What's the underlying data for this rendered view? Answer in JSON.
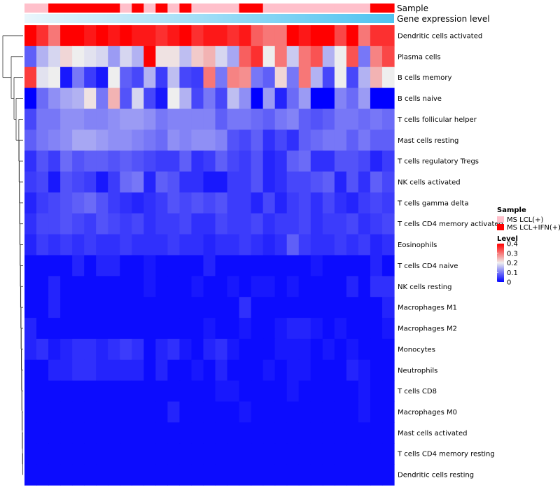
{
  "chart_data": {
    "type": "heatmap",
    "annotation_labels": [
      "Sample",
      "Gene expression level"
    ],
    "rows": [
      "Dendritic cells activated",
      "Plasma cells",
      "B cells memory",
      "B cells naive",
      "T cells follicular helper",
      "Mast cells resting",
      "T cells regulatory  Tregs",
      "NK cells activated",
      "T cells gamma delta",
      "T cells CD4 memory activated",
      "Eosinophils",
      "T cells CD4 naive",
      "NK cells resting",
      "Macrophages M1",
      "Macrophages M2",
      "Monocytes",
      "Neutrophils",
      "T cells CD8",
      "Macrophages M0",
      "Mast cells activated",
      "T cells CD4 memory resting",
      "Dendritic cells resting"
    ],
    "n_columns": 31,
    "sample_groups": [
      "MS LCL(+)",
      "MS LCL+IFN(+)"
    ],
    "sample_annotation": [
      0,
      0,
      1,
      1,
      1,
      1,
      1,
      1,
      0,
      1,
      0,
      1,
      0,
      1,
      0,
      0,
      0,
      0,
      1,
      1,
      0,
      0,
      0,
      0,
      0,
      0,
      0,
      0,
      0,
      1,
      1
    ],
    "values": [
      [
        0.4,
        0.36,
        0.3,
        0.42,
        0.42,
        0.38,
        0.4,
        0.38,
        0.4,
        0.38,
        0.38,
        0.36,
        0.38,
        0.42,
        0.36,
        0.38,
        0.38,
        0.36,
        0.38,
        0.32,
        0.3,
        0.3,
        0.4,
        0.38,
        0.4,
        0.4,
        0.34,
        0.4,
        0.3,
        0.36,
        0.36
      ],
      [
        0.08,
        0.15,
        0.18,
        0.22,
        0.2,
        0.19,
        0.18,
        0.13,
        0.18,
        0.15,
        0.42,
        0.21,
        0.21,
        0.16,
        0.23,
        0.25,
        0.18,
        0.14,
        0.32,
        0.36,
        0.2,
        0.3,
        0.17,
        0.3,
        0.33,
        0.15,
        0.2,
        0.33,
        0.1,
        0.29,
        0.34
      ],
      [
        0.35,
        0.19,
        0.2,
        0.02,
        0.1,
        0.05,
        0.02,
        0.2,
        0.08,
        0.06,
        0.15,
        0.05,
        0.16,
        0.06,
        0.05,
        0.3,
        0.1,
        0.29,
        0.28,
        0.1,
        0.08,
        0.22,
        0.1,
        0.3,
        0.15,
        0.06,
        0.2,
        0.06,
        0.15,
        0.25,
        0.2
      ],
      [
        0.0,
        0.09,
        0.12,
        0.14,
        0.15,
        0.21,
        0.1,
        0.25,
        0.07,
        0.18,
        0.06,
        0.02,
        0.2,
        0.15,
        0.06,
        0.1,
        0.06,
        0.16,
        0.12,
        0.0,
        0.13,
        0.03,
        0.09,
        0.13,
        0.0,
        0.0,
        0.11,
        0.09,
        0.13,
        0.0,
        0.0
      ],
      [
        0.06,
        0.1,
        0.1,
        0.12,
        0.12,
        0.11,
        0.11,
        0.12,
        0.13,
        0.13,
        0.12,
        0.1,
        0.11,
        0.11,
        0.11,
        0.11,
        0.08,
        0.1,
        0.1,
        0.09,
        0.08,
        0.1,
        0.11,
        0.08,
        0.07,
        0.08,
        0.1,
        0.1,
        0.09,
        0.1,
        0.09
      ],
      [
        0.08,
        0.1,
        0.11,
        0.12,
        0.14,
        0.14,
        0.13,
        0.12,
        0.12,
        0.11,
        0.1,
        0.09,
        0.12,
        0.11,
        0.12,
        0.12,
        0.11,
        0.07,
        0.06,
        0.08,
        0.04,
        0.06,
        0.04,
        0.08,
        0.09,
        0.1,
        0.1,
        0.08,
        0.1,
        0.08,
        0.08
      ],
      [
        0.04,
        0.07,
        0.05,
        0.09,
        0.07,
        0.08,
        0.08,
        0.07,
        0.08,
        0.07,
        0.06,
        0.05,
        0.05,
        0.08,
        0.04,
        0.05,
        0.08,
        0.06,
        0.05,
        0.07,
        0.03,
        0.04,
        0.08,
        0.09,
        0.04,
        0.04,
        0.07,
        0.07,
        0.06,
        0.03,
        0.05
      ],
      [
        0.05,
        0.06,
        0.02,
        0.07,
        0.06,
        0.05,
        0.02,
        0.05,
        0.09,
        0.1,
        0.03,
        0.08,
        0.07,
        0.04,
        0.04,
        0.02,
        0.02,
        0.05,
        0.05,
        0.07,
        0.03,
        0.04,
        0.06,
        0.06,
        0.07,
        0.08,
        0.03,
        0.07,
        0.04,
        0.08,
        0.06
      ],
      [
        0.03,
        0.05,
        0.06,
        0.07,
        0.08,
        0.09,
        0.07,
        0.05,
        0.04,
        0.03,
        0.04,
        0.05,
        0.07,
        0.06,
        0.07,
        0.06,
        0.07,
        0.05,
        0.05,
        0.03,
        0.06,
        0.03,
        0.05,
        0.06,
        0.04,
        0.06,
        0.04,
        0.03,
        0.05,
        0.06,
        0.05
      ],
      [
        0.04,
        0.06,
        0.06,
        0.07,
        0.06,
        0.05,
        0.07,
        0.06,
        0.05,
        0.06,
        0.04,
        0.05,
        0.05,
        0.06,
        0.04,
        0.04,
        0.06,
        0.05,
        0.05,
        0.06,
        0.04,
        0.05,
        0.05,
        0.06,
        0.04,
        0.05,
        0.05,
        0.06,
        0.04,
        0.05,
        0.06
      ],
      [
        0.03,
        0.05,
        0.04,
        0.05,
        0.04,
        0.05,
        0.04,
        0.04,
        0.05,
        0.04,
        0.04,
        0.04,
        0.05,
        0.04,
        0.04,
        0.03,
        0.04,
        0.04,
        0.05,
        0.04,
        0.03,
        0.04,
        0.08,
        0.05,
        0.04,
        0.04,
        0.05,
        0.04,
        0.05,
        0.03,
        0.04
      ],
      [
        0.01,
        0.01,
        0.01,
        0.01,
        0.03,
        0.01,
        0.03,
        0.03,
        0.01,
        0.01,
        0.02,
        0.01,
        0.01,
        0.01,
        0.01,
        0.03,
        0.01,
        0.01,
        0.01,
        0.01,
        0.01,
        0.01,
        0.01,
        0.01,
        0.02,
        0.01,
        0.01,
        0.01,
        0.01,
        0.03,
        0.01
      ],
      [
        0.01,
        0.01,
        0.03,
        0.01,
        0.01,
        0.01,
        0.01,
        0.01,
        0.01,
        0.01,
        0.02,
        0.01,
        0.01,
        0.01,
        0.02,
        0.01,
        0.01,
        0.02,
        0.01,
        0.02,
        0.02,
        0.01,
        0.02,
        0.01,
        0.01,
        0.01,
        0.01,
        0.03,
        0.01,
        0.04,
        0.04
      ],
      [
        0.01,
        0.01,
        0.03,
        0.01,
        0.01,
        0.01,
        0.01,
        0.01,
        0.01,
        0.01,
        0.01,
        0.01,
        0.01,
        0.01,
        0.01,
        0.01,
        0.01,
        0.01,
        0.04,
        0.01,
        0.01,
        0.01,
        0.01,
        0.01,
        0.01,
        0.01,
        0.01,
        0.01,
        0.01,
        0.01,
        0.03
      ],
      [
        0.03,
        0.01,
        0.01,
        0.01,
        0.01,
        0.01,
        0.01,
        0.01,
        0.01,
        0.01,
        0.01,
        0.01,
        0.01,
        0.01,
        0.01,
        0.02,
        0.01,
        0.01,
        0.02,
        0.01,
        0.01,
        0.02,
        0.03,
        0.03,
        0.02,
        0.01,
        0.02,
        0.01,
        0.01,
        0.01,
        0.02
      ],
      [
        0.03,
        0.04,
        0.02,
        0.03,
        0.04,
        0.04,
        0.03,
        0.04,
        0.05,
        0.04,
        0.01,
        0.03,
        0.04,
        0.02,
        0.01,
        0.03,
        0.04,
        0.02,
        0.01,
        0.01,
        0.01,
        0.02,
        0.02,
        0.02,
        0.01,
        0.02,
        0.01,
        0.02,
        0.01,
        0.01,
        0.01
      ],
      [
        0.01,
        0.01,
        0.03,
        0.03,
        0.04,
        0.04,
        0.03,
        0.03,
        0.03,
        0.03,
        0.01,
        0.03,
        0.01,
        0.01,
        0.02,
        0.01,
        0.03,
        0.01,
        0.01,
        0.01,
        0.02,
        0.01,
        0.02,
        0.02,
        0.01,
        0.01,
        0.01,
        0.03,
        0.02,
        0.01,
        0.01
      ],
      [
        0.01,
        0.01,
        0.01,
        0.01,
        0.01,
        0.01,
        0.01,
        0.01,
        0.01,
        0.01,
        0.01,
        0.01,
        0.01,
        0.01,
        0.01,
        0.01,
        0.02,
        0.02,
        0.01,
        0.01,
        0.01,
        0.01,
        0.02,
        0.01,
        0.01,
        0.01,
        0.01,
        0.01,
        0.02,
        0.01,
        0.01
      ],
      [
        0.01,
        0.01,
        0.01,
        0.01,
        0.01,
        0.01,
        0.01,
        0.01,
        0.01,
        0.01,
        0.01,
        0.01,
        0.03,
        0.01,
        0.01,
        0.01,
        0.01,
        0.01,
        0.02,
        0.01,
        0.01,
        0.01,
        0.01,
        0.01,
        0.01,
        0.01,
        0.01,
        0.01,
        0.02,
        0.01,
        0.01
      ],
      [
        0.01,
        0.01,
        0.01,
        0.01,
        0.01,
        0.01,
        0.01,
        0.01,
        0.01,
        0.01,
        0.01,
        0.01,
        0.01,
        0.01,
        0.01,
        0.01,
        0.01,
        0.01,
        0.01,
        0.01,
        0.01,
        0.01,
        0.01,
        0.01,
        0.01,
        0.01,
        0.01,
        0.01,
        0.01,
        0.01,
        0.01
      ],
      [
        0.01,
        0.01,
        0.01,
        0.01,
        0.01,
        0.01,
        0.01,
        0.01,
        0.01,
        0.01,
        0.01,
        0.01,
        0.01,
        0.01,
        0.01,
        0.01,
        0.01,
        0.01,
        0.01,
        0.01,
        0.01,
        0.01,
        0.01,
        0.01,
        0.01,
        0.01,
        0.01,
        0.01,
        0.01,
        0.01,
        0.01
      ],
      [
        0.01,
        0.01,
        0.01,
        0.01,
        0.01,
        0.01,
        0.01,
        0.01,
        0.01,
        0.01,
        0.01,
        0.01,
        0.01,
        0.01,
        0.01,
        0.01,
        0.01,
        0.01,
        0.01,
        0.01,
        0.01,
        0.01,
        0.01,
        0.01,
        0.01,
        0.01,
        0.01,
        0.01,
        0.01,
        0.01,
        0.01
      ]
    ],
    "color_scale": {
      "min": 0,
      "max": 0.4,
      "stops": [
        {
          "value": 0,
          "color": "#0000ff"
        },
        {
          "value": 0.2,
          "color": "#eeeeee"
        },
        {
          "value": 0.4,
          "color": "#ff0000"
        }
      ]
    },
    "expression_gradient": {
      "from": "#eaf6fc",
      "to": "#4fc3f0"
    },
    "sample_colors": [
      "#ffc0cb",
      "#ff0000"
    ],
    "legend": {
      "sample_title": "Sample",
      "sample_entries": [
        "MS LCL(+)",
        "MS LCL+IFN(+)"
      ],
      "level_title": "Level",
      "level_ticks": [
        "0.4",
        "0.3",
        "0.2",
        "0.1",
        "0"
      ]
    }
  }
}
